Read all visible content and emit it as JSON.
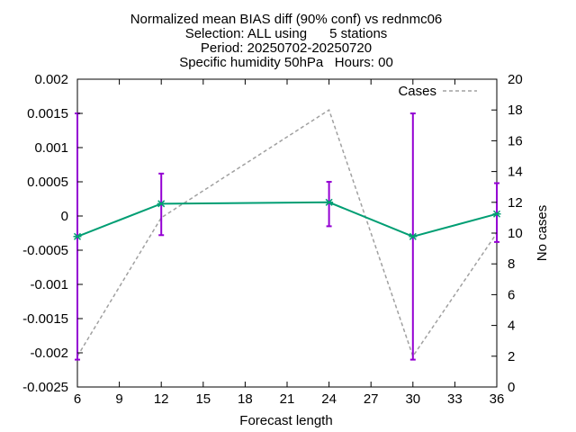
{
  "chart_data": {
    "type": "line",
    "title_lines": [
      "Normalized mean BIAS diff (90% conf) vs rednmc06",
      "Selection: ALL using      5 stations",
      "Period: 20250702-20250720",
      "Specific humidity 50hPa   Hours: 00"
    ],
    "xlabel": "Forecast length",
    "ylabel": "",
    "y2label": "No cases",
    "xlim": [
      6,
      36
    ],
    "ylim": [
      -0.0025,
      0.002
    ],
    "y2lim": [
      0,
      20
    ],
    "x_ticks": [
      "6",
      "9",
      "12",
      "15",
      "18",
      "21",
      "24",
      "27",
      "30",
      "33",
      "36"
    ],
    "y_ticks": [
      "0.002",
      "0.0015",
      "0.001",
      "0.0005",
      "0",
      "-0.0005",
      "-0.001",
      "-0.0015",
      "-0.002",
      "-0.0025"
    ],
    "y2_ticks": [
      "20",
      "18",
      "16",
      "14",
      "12",
      "10",
      "8",
      "6",
      "4",
      "2",
      "0"
    ],
    "grid": false,
    "legend_position": "top-right",
    "colors": {
      "bias": "#009e73",
      "errorbar": "#9400d3",
      "cases": "#a0a0a0"
    },
    "series": [
      {
        "name": "",
        "axis": "left",
        "x": [
          6,
          12,
          24,
          30,
          36
        ],
        "values": [
          -0.0003,
          0.00018,
          0.0002,
          -0.0003,
          3e-05
        ],
        "err_low": [
          -0.0021,
          -0.00028,
          -0.00015,
          -0.0021,
          -0.00038
        ],
        "err_high": [
          0.0015,
          0.00062,
          0.0005,
          0.0015,
          0.00048
        ]
      },
      {
        "name": "Cases",
        "axis": "right",
        "style": "dashed",
        "x": [
          6,
          12,
          24,
          30,
          36
        ],
        "values": [
          2,
          11,
          18,
          2,
          10
        ]
      }
    ]
  }
}
